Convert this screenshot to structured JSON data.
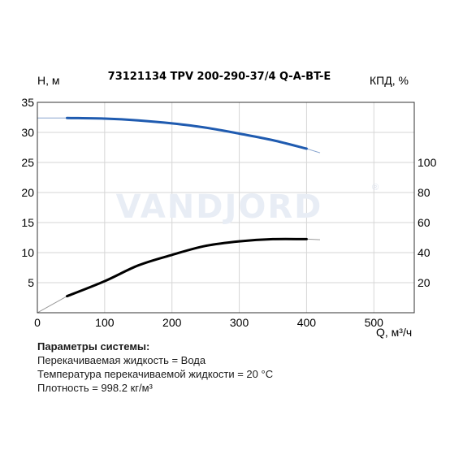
{
  "chart_data": {
    "type": "line",
    "title": "73121134 TPV 200-290-37/4 Q-A-BT-E",
    "ylabel_left": "H, м",
    "ylabel_right": "КПД, %",
    "xlabel": "Q, м³/ч",
    "watermark": "VANDJORD",
    "watermark_mark": "®",
    "xlim": [
      0,
      560
    ],
    "ylim_left": [
      0,
      35
    ],
    "ylim_right": [
      0,
      140
    ],
    "x_ticks": [
      "0",
      "100",
      "200",
      "300",
      "400",
      "500"
    ],
    "x_tick_values": [
      0,
      100,
      200,
      300,
      400,
      500
    ],
    "y_left_ticks": [
      "5",
      "10",
      "15",
      "20",
      "25",
      "30",
      "35"
    ],
    "y_left_tick_values": [
      5,
      10,
      15,
      20,
      25,
      30,
      35
    ],
    "y_right_ticks": [
      "20",
      "40",
      "60",
      "80",
      "100"
    ],
    "y_right_tick_values": [
      20,
      40,
      60,
      80,
      100
    ],
    "grid": true,
    "series": [
      {
        "axis": "left",
        "color": "#1f5bb0",
        "extension_color": "#8aa6cf",
        "x": [
          44,
          100,
          150,
          200,
          250,
          300,
          350,
          400
        ],
        "values": [
          32.4,
          32.3,
          32.0,
          31.5,
          30.8,
          29.8,
          28.7,
          27.3
        ],
        "extension_x": [
          0,
          44,
          400,
          420
        ],
        "extension_values": [
          32.4,
          32.4,
          27.3,
          26.6
        ]
      },
      {
        "axis": "right",
        "color": "#000000",
        "extension_color": "#999999",
        "x": [
          44,
          100,
          150,
          200,
          250,
          300,
          350,
          400
        ],
        "values": [
          11,
          21,
          31.5,
          38.5,
          44.5,
          47.5,
          49,
          49
        ],
        "extension_x": [
          0,
          44,
          400,
          420
        ],
        "extension_values": [
          0,
          11,
          49,
          48.6
        ]
      }
    ]
  },
  "params": {
    "header": "Параметры системы:",
    "lines": [
      "Перекачиваемая жидкость = Вода",
      "Температура перекачиваемой жидкости = 20 °C",
      "Плотность = 998.2 кг/м³"
    ]
  }
}
